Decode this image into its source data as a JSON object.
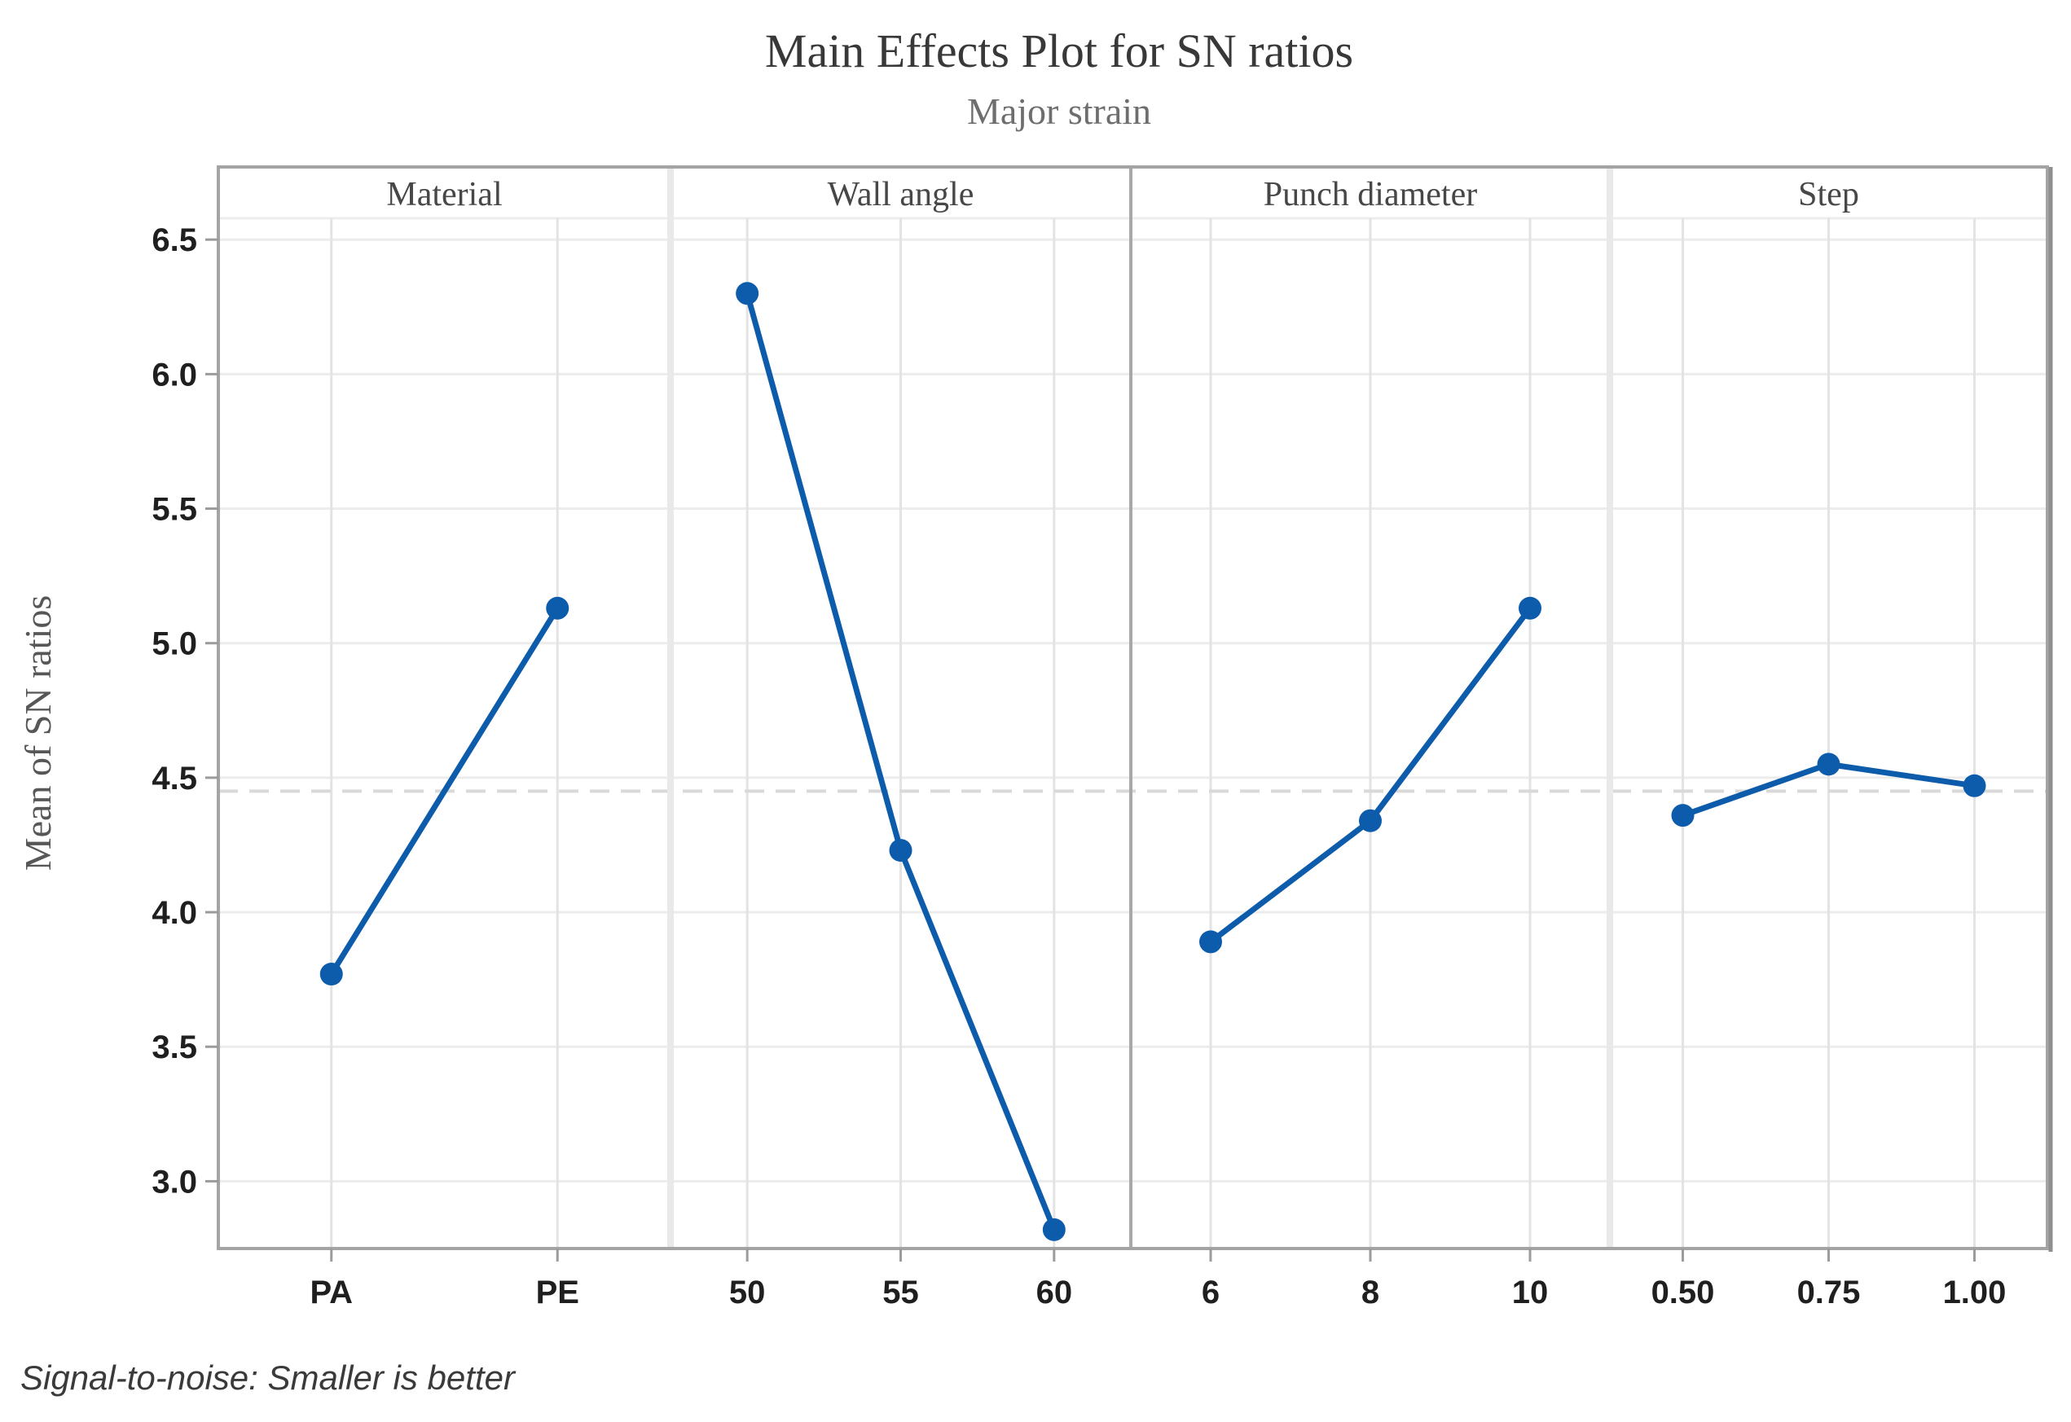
{
  "chart_data": {
    "type": "line",
    "title": "Main Effects Plot for SN ratios",
    "subtitle": "Major strain",
    "ylabel": "Mean of SN ratios",
    "footnote": "Signal-to-noise: Smaller is better",
    "ylim": [
      2.75,
      6.77
    ],
    "ytick_values": [
      6.5,
      6.0,
      5.5,
      5.0,
      4.5,
      4.0,
      3.5,
      3.0
    ],
    "ytick_labels": [
      "6.5",
      "6.0",
      "5.5",
      "5.0",
      "4.5",
      "4.0",
      "3.5",
      "3.0"
    ],
    "reference_mean_line": 4.45,
    "grid": true,
    "legend": "none",
    "panels": [
      {
        "label": "Material",
        "categories": [
          "PA",
          "PE"
        ],
        "values": [
          3.77,
          5.13
        ]
      },
      {
        "label": "Wall angle",
        "categories": [
          "50",
          "55",
          "60"
        ],
        "values": [
          6.3,
          4.23,
          2.82
        ]
      },
      {
        "label": "Punch diameter",
        "categories": [
          "6",
          "8",
          "10"
        ],
        "values": [
          3.89,
          4.34,
          5.13
        ]
      },
      {
        "label": "Step",
        "categories": [
          "0.50",
          "0.75",
          "1.00"
        ],
        "values": [
          4.36,
          4.55,
          4.47
        ]
      }
    ],
    "colors": {
      "series_blue": "#0d5cab",
      "frame_gray": "#a4a4a4",
      "dark_divider_gray": "#a8a8a8",
      "light_divider_gray": "#e9e9e9",
      "h_gridline_gray": "#ececec",
      "v_gridline_gray": "#e3e3e3",
      "dashed_reference_gray": "#d9d9d9",
      "tick_mark_gray": "#9b9b9b"
    }
  }
}
